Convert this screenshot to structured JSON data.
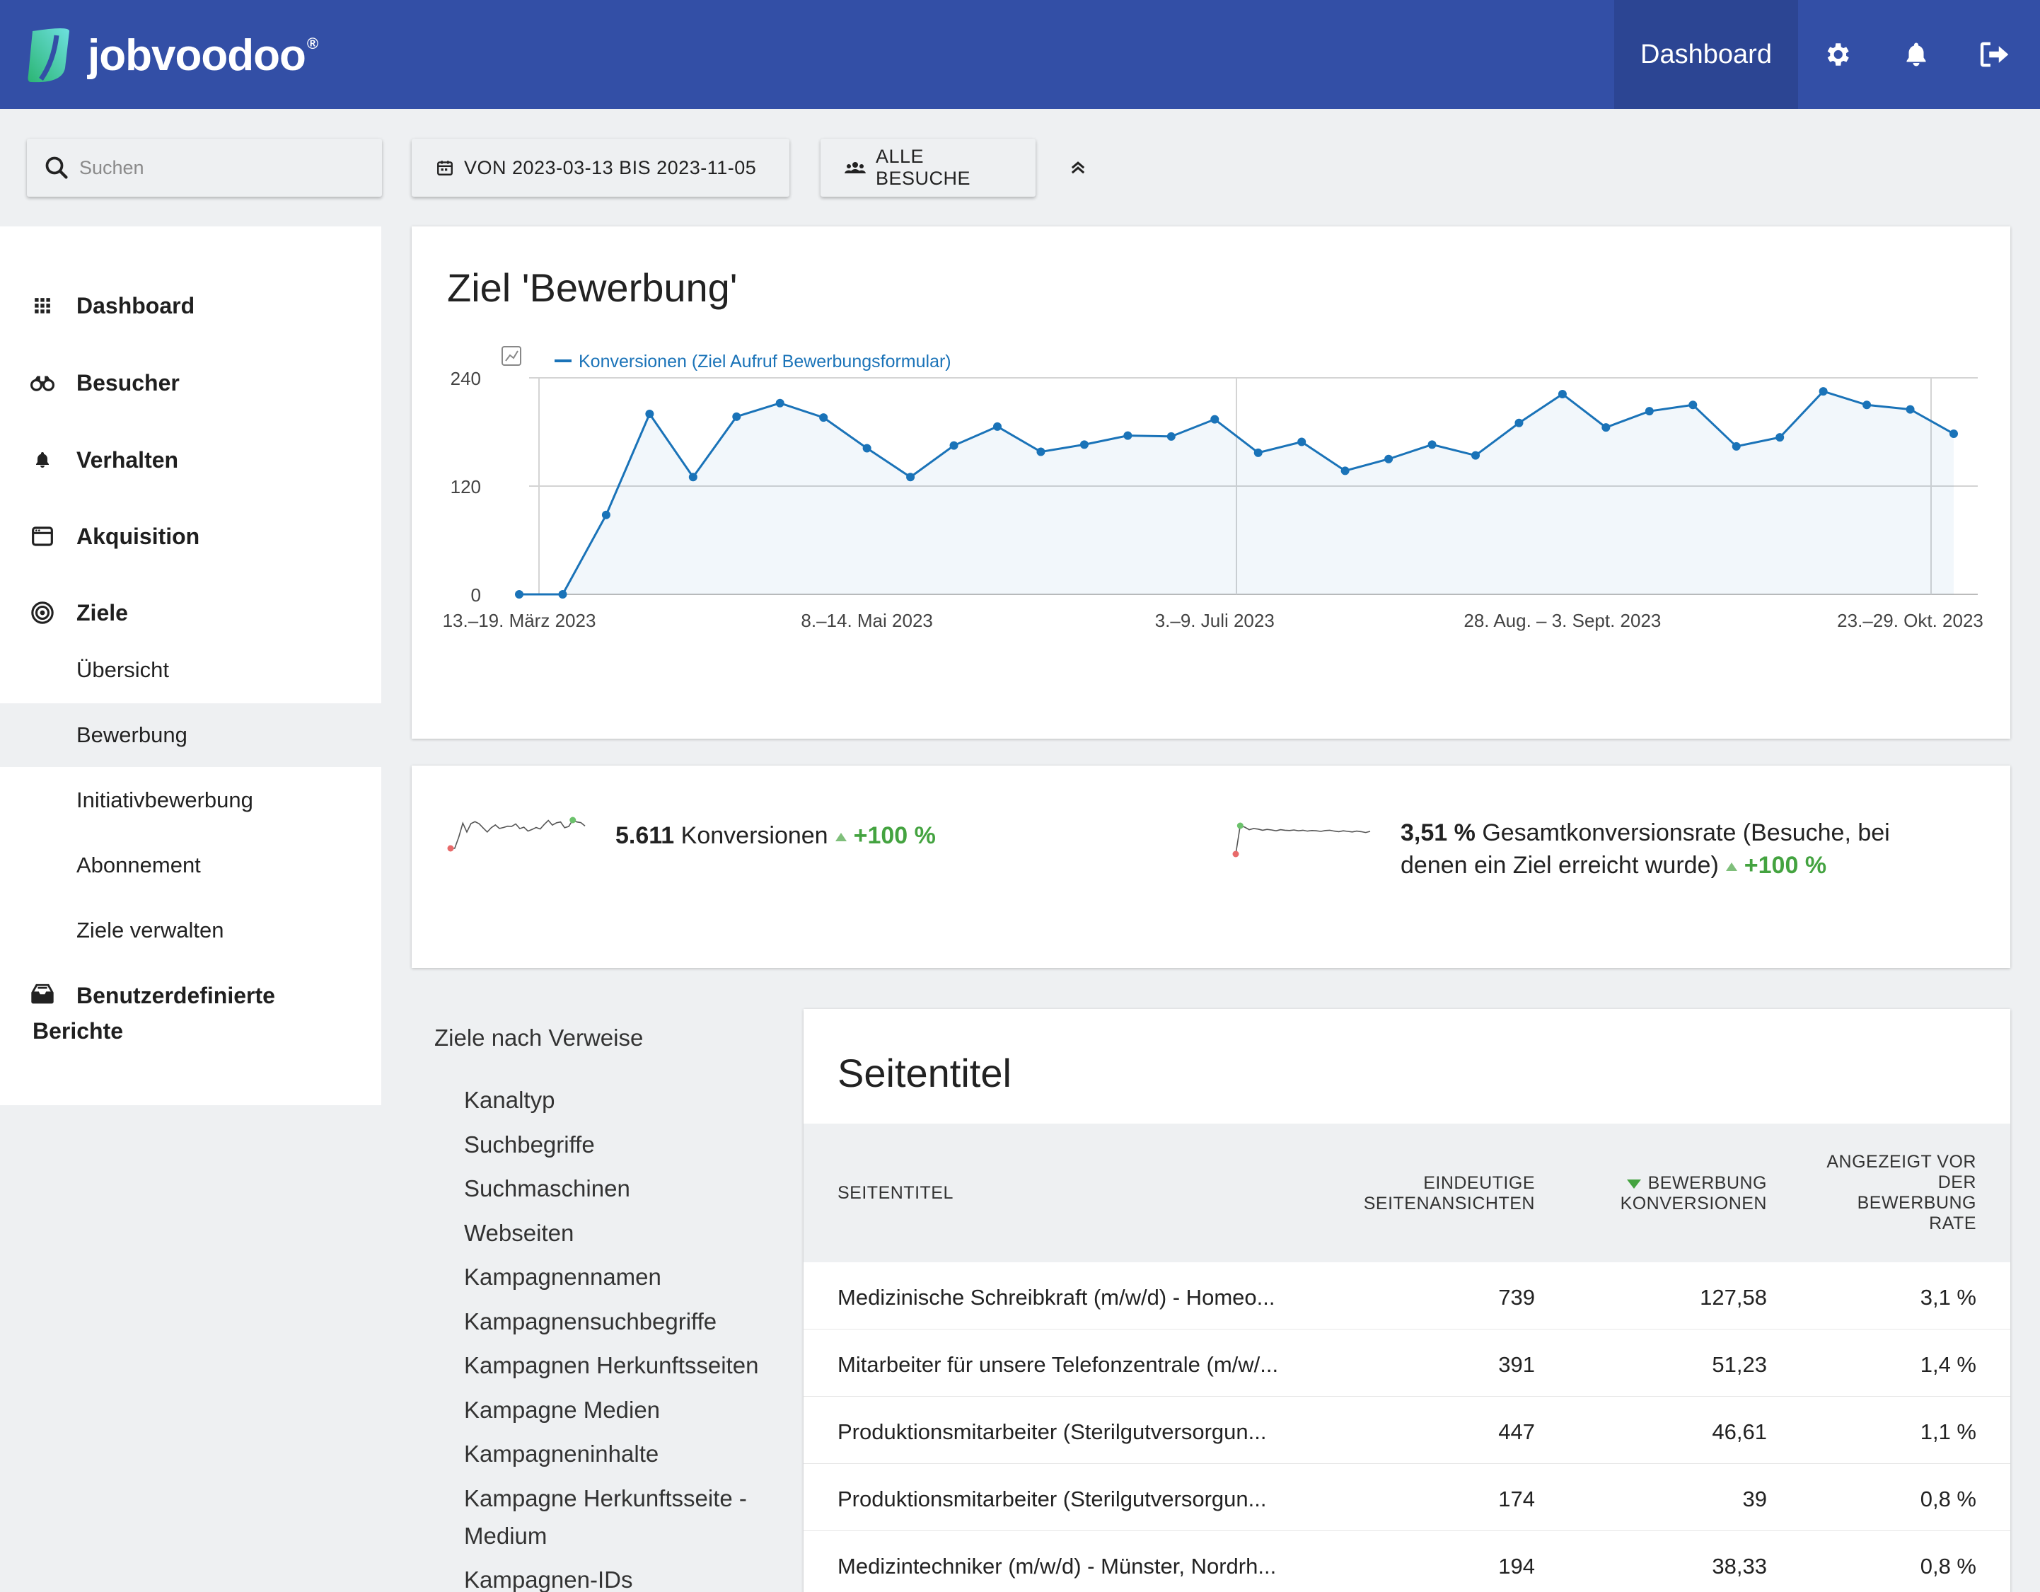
{
  "app": {
    "logo_text": "jobvoodoo",
    "logo_mark": "®",
    "nav_dashboard": "Dashboard",
    "icons": [
      "gear-icon",
      "bell-icon",
      "logout-icon"
    ],
    "brand_color": "#334fa6"
  },
  "toolbar": {
    "search_placeholder": "Suchen",
    "date_range": "VON 2023-03-13 BIS 2023-11-05",
    "segment": "ALLE BESUCHE"
  },
  "sidebar": {
    "items": [
      {
        "label": "Dashboard",
        "icon": "grid-icon"
      },
      {
        "label": "Besucher",
        "icon": "binoculars-icon"
      },
      {
        "label": "Verhalten",
        "icon": "bell-icon"
      },
      {
        "label": "Akquisition",
        "icon": "browser-icon"
      },
      {
        "label": "Ziele",
        "icon": "target-icon"
      }
    ],
    "sub_items": [
      "Übersicht",
      "Bewerbung",
      "Initiativbewerbung",
      "Abonnement",
      "Ziele verwalten"
    ],
    "active_sub": "Bewerbung",
    "custom_reports": {
      "line1": "Benutzerdefinierte",
      "line2": "Berichte"
    }
  },
  "chart": {
    "title": "Ziel 'Bewerbung'",
    "legend": "Konversionen (Ziel Aufruf Bewerbungsformular)"
  },
  "chart_data": {
    "type": "line",
    "series": [
      {
        "name": "Konversionen (Ziel Aufruf Bewerbungsformular)",
        "values": [
          0,
          0,
          88,
          200,
          130,
          197,
          212,
          196,
          162,
          130,
          165,
          186,
          158,
          166,
          176,
          175,
          194,
          157,
          169,
          137,
          150,
          166,
          154,
          190,
          222,
          185,
          203,
          210,
          164,
          174,
          225,
          210,
          205,
          178
        ]
      }
    ],
    "x_tick_labels": [
      "13.–19. März 2023",
      "8.–14. Mai 2023",
      "3.–9. Juli 2023",
      "28. Aug. – 3. Sept. 2023",
      "23.–29. Okt. 2023"
    ],
    "x_tick_indices": [
      0,
      8,
      16,
      24,
      32
    ],
    "y_ticks": [
      0,
      120,
      240
    ],
    "ylim": [
      0,
      240
    ],
    "grid": true,
    "color": "#1a73b8"
  },
  "kpis": {
    "conversions": {
      "value": "5.611",
      "label": "Konversionen",
      "change": "+100 %"
    },
    "rate": {
      "value": "3,51 %",
      "label_line1": "Gesamtkonversionsrate (Besuche, bei",
      "label_line2": "denen ein Ziel erreicht wurde)",
      "change": "+100 %"
    }
  },
  "referrers": {
    "heading": "Ziele nach Verweise",
    "items": [
      "Kanaltyp",
      "Suchbegriffe",
      "Suchmaschinen",
      "Webseiten",
      "Kampagnennamen",
      "Kampagnensuchbegriffe",
      "Kampagnen Herkunftsseiten",
      "Kampagne Medien",
      "Kampagneninhalte",
      "Kampagne Herkunftsseite -",
      "Medium",
      "Kampagnen-IDs"
    ]
  },
  "table": {
    "title": "Seitentitel",
    "headers": {
      "col1": "SEITENTITEL",
      "col2_l1": "EINDEUTIGE",
      "col2_l2": "SEITENANSICHTEN",
      "col3_l1": "BEWERBUNG",
      "col3_l2": "KONVERSIONEN",
      "col4_l1": "ANGEZEIGT VOR",
      "col4_l2": "DER",
      "col4_l3": "BEWERBUNG",
      "col4_l4": "RATE"
    },
    "rows": [
      {
        "title": "Medizinische Schreibkraft (m/w/d) - Homeo...",
        "views": "739",
        "conv": "127,58",
        "rate": "3,1 %"
      },
      {
        "title": "Mitarbeiter für unsere Telefonzentrale (m/w/...",
        "views": "391",
        "conv": "51,23",
        "rate": "1,4 %"
      },
      {
        "title": "Produktionsmitarbeiter (Sterilgutversorgun...",
        "views": "447",
        "conv": "46,61",
        "rate": "1,1 %"
      },
      {
        "title": "Produktionsmitarbeiter (Sterilgutversorgun...",
        "views": "174",
        "conv": "39",
        "rate": "0,8 %"
      },
      {
        "title": "Medizintechniker (m/w/d) - Münster, Nordrh...",
        "views": "194",
        "conv": "38,33",
        "rate": "0,8 %"
      }
    ]
  }
}
